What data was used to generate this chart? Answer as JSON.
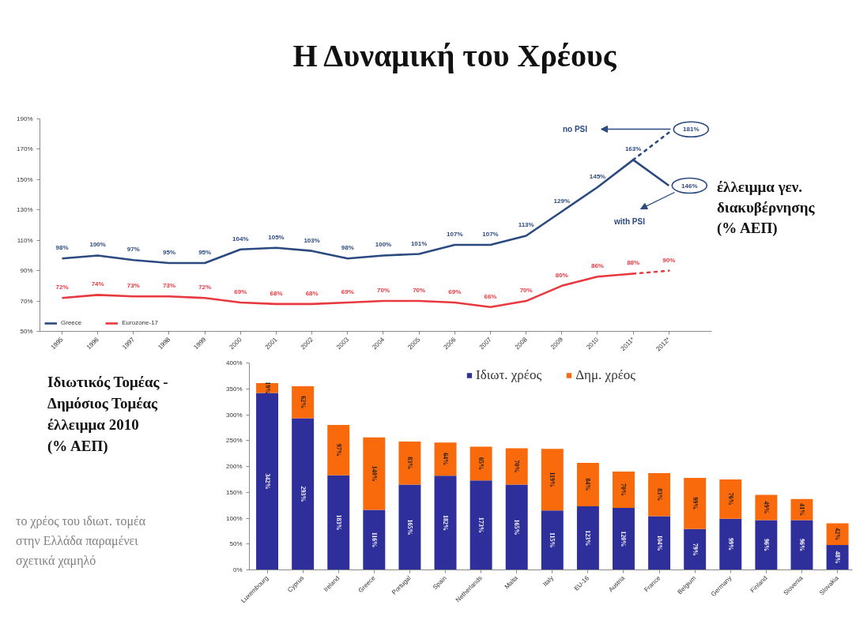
{
  "chart_data": [
    {
      "type": "line",
      "title": "Η Δυναμική του Χρέους",
      "categories": [
        "1995",
        "1996",
        "1997",
        "1998",
        "1999",
        "2000",
        "2001",
        "2002",
        "2003",
        "2004",
        "2005",
        "2006",
        "2007",
        "2008",
        "2009",
        "2010",
        "2011*",
        "2012*"
      ],
      "series": [
        {
          "name": "Greece",
          "color": "#2b4a80",
          "values": [
            98,
            100,
            97,
            95,
            95,
            104,
            105,
            103,
            98,
            100,
            101,
            107,
            107,
            113,
            129,
            145,
            163,
            146
          ],
          "value_labels": [
            "98%",
            "100%",
            "97%",
            "95%",
            "95%",
            "104%",
            "105%",
            "103%",
            "98%",
            "100%",
            "101%",
            "107%",
            "107%",
            "113%",
            "129%",
            "145%",
            "163%",
            "146%"
          ]
        },
        {
          "name": "Eurozone-17",
          "color": "#e8393f",
          "values": [
            72,
            74,
            73,
            73,
            72,
            69,
            68,
            68,
            69,
            70,
            70,
            69,
            66,
            70,
            80,
            86,
            88,
            null
          ],
          "value_labels": [
            "72%",
            "74%",
            "73%",
            "73%",
            "72%",
            "69%",
            "68%",
            "68%",
            "69%",
            "70%",
            "70%",
            "69%",
            "66%",
            "70%",
            "80%",
            "86%",
            "88%",
            null
          ]
        },
        {
          "color": "#2b4a80",
          "line_style": "dotted",
          "values": [
            null,
            null,
            null,
            null,
            null,
            null,
            null,
            null,
            null,
            null,
            null,
            null,
            null,
            null,
            null,
            null,
            163,
            181
          ],
          "value_labels": [
            null,
            null,
            null,
            null,
            null,
            null,
            null,
            null,
            null,
            null,
            null,
            null,
            null,
            null,
            null,
            null,
            null,
            "181%"
          ]
        },
        {
          "color": "#e8393f",
          "line_style": "dotted",
          "values": [
            null,
            null,
            null,
            null,
            null,
            null,
            null,
            null,
            null,
            null,
            null,
            null,
            null,
            null,
            null,
            null,
            88,
            90
          ],
          "value_labels": [
            null,
            null,
            null,
            null,
            null,
            null,
            null,
            null,
            null,
            null,
            null,
            null,
            null,
            null,
            null,
            null,
            null,
            "90%"
          ]
        }
      ],
      "ylim": [
        50,
        190
      ],
      "yticks": [
        {
          "value": 50,
          "label": "50%"
        },
        {
          "value": 70,
          "label": "70%"
        },
        {
          "value": 90,
          "label": "90%"
        },
        {
          "value": 110,
          "label": "110%"
        },
        {
          "value": 130,
          "label": "130%"
        },
        {
          "value": 150,
          "label": "150%"
        },
        {
          "value": 170,
          "label": "170%"
        },
        {
          "value": 190,
          "label": "190%"
        }
      ],
      "legend": "bottom left",
      "annotations": [
        "no PSI",
        "with PSI",
        "έλλειμμα γεν.\nδιακυβέρνησης\n(% ΑΕΠ)"
      ]
    },
    {
      "type": "bar",
      "stacked": true,
      "title": "Ιδιωτικός Τομέας -\nΔημόσιος Τομέας\nέλλειμμα 2010\n(% ΑΕΠ)",
      "categories": [
        "Luxembourg",
        "Cyprus",
        "Ireland",
        "Greece",
        "Portugal",
        "Spain",
        "Netherlands",
        "Malta",
        "Italy",
        "EU-16",
        "Austria",
        "France",
        "Belgium",
        "Germany",
        "Finland",
        "Slovenia",
        "Slovakia"
      ],
      "series": [
        {
          "name": "Ιδιωτ. χρέος",
          "color": "#2e2f9a",
          "values": [
            342,
            293,
            183,
            116,
            165,
            182,
            173,
            165,
            115,
            123,
            120,
            104,
            79,
            99,
            96,
            96,
            48
          ],
          "value_labels": [
            "342%",
            "293%",
            "183%",
            "116%",
            "165%",
            "182%",
            "173%",
            "165%",
            "115%",
            "123%",
            "120%",
            "104%",
            "79%",
            "99%",
            "96%",
            "96%",
            "48%"
          ]
        },
        {
          "name": "Δημ. χρέος",
          "color": "#f96a0d",
          "values": [
            19,
            62,
            97,
            140,
            83,
            64,
            65,
            70,
            119,
            84,
            70,
            83,
            99,
            76,
            49,
            41,
            42
          ],
          "value_labels": [
            "19%",
            "62%",
            "97%",
            "140%",
            "83%",
            "64%",
            "65%",
            "70%",
            "119%",
            "84%",
            "70%",
            "83%",
            "99%",
            "76%",
            "49%",
            "41%",
            "42%"
          ]
        }
      ],
      "ylim": [
        0,
        400
      ],
      "yticks": [
        {
          "value": 0,
          "label": "0%"
        },
        {
          "value": 50,
          "label": "50%"
        },
        {
          "value": 100,
          "label": "100%"
        },
        {
          "value": 150,
          "label": "150%"
        },
        {
          "value": 200,
          "label": "200%"
        },
        {
          "value": 250,
          "label": "250%"
        },
        {
          "value": 300,
          "label": "300%"
        },
        {
          "value": 350,
          "label": "350%"
        },
        {
          "value": 400,
          "label": "400%"
        }
      ],
      "legend": "top",
      "annotations": [
        "το χρέος του ιδιωτ. τομέα\nστην Ελλάδα παραμένει\nσχετικά χαμηλό"
      ]
    }
  ]
}
